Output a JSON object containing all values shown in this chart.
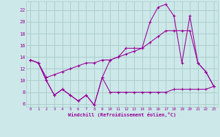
{
  "bg_color": "#cce8e8",
  "grid_color": "#aacccc",
  "line_color": "#990099",
  "xlabel": "Windchill (Refroidissement éolien,°C)",
  "ylim": [
    5.5,
    23.5
  ],
  "xlim": [
    -0.5,
    23.5
  ],
  "yticks": [
    6,
    8,
    10,
    12,
    14,
    16,
    18,
    20,
    22
  ],
  "xticks": [
    0,
    1,
    2,
    3,
    4,
    5,
    6,
    7,
    8,
    9,
    10,
    11,
    12,
    13,
    14,
    15,
    16,
    17,
    18,
    19,
    20,
    21,
    22,
    23
  ],
  "line1_x": [
    0,
    1,
    2,
    3,
    4,
    5,
    6,
    7,
    8,
    9,
    10,
    11,
    12,
    13,
    14,
    15,
    16,
    17,
    18,
    19,
    20,
    21,
    22,
    23
  ],
  "line1_y": [
    13.5,
    13.0,
    10.0,
    7.5,
    8.5,
    7.5,
    6.5,
    7.5,
    5.8,
    10.5,
    8.0,
    8.0,
    8.0,
    8.0,
    8.0,
    8.0,
    8.0,
    8.0,
    8.5,
    8.5,
    8.5,
    8.5,
    8.5,
    9.0
  ],
  "line2_x": [
    0,
    1,
    2,
    3,
    4,
    5,
    6,
    7,
    8,
    9,
    10,
    11,
    12,
    13,
    14,
    15,
    16,
    17,
    18,
    19,
    20,
    21,
    22,
    23
  ],
  "line2_y": [
    13.5,
    13.0,
    10.0,
    7.5,
    8.5,
    7.5,
    6.5,
    7.5,
    5.8,
    10.5,
    13.5,
    14.0,
    15.5,
    15.5,
    15.5,
    20.0,
    22.5,
    23.0,
    21.0,
    13.0,
    21.0,
    13.0,
    11.5,
    9.0
  ],
  "line3_x": [
    0,
    1,
    2,
    3,
    4,
    5,
    6,
    7,
    8,
    9,
    10,
    11,
    12,
    13,
    14,
    15,
    16,
    17,
    18,
    19,
    20,
    21,
    22,
    23
  ],
  "line3_y": [
    13.5,
    13.0,
    10.5,
    11.0,
    11.5,
    12.0,
    12.5,
    13.0,
    13.0,
    13.5,
    13.5,
    14.0,
    14.5,
    15.0,
    15.5,
    16.5,
    17.5,
    18.5,
    18.5,
    18.5,
    18.5,
    13.0,
    11.5,
    9.0
  ]
}
